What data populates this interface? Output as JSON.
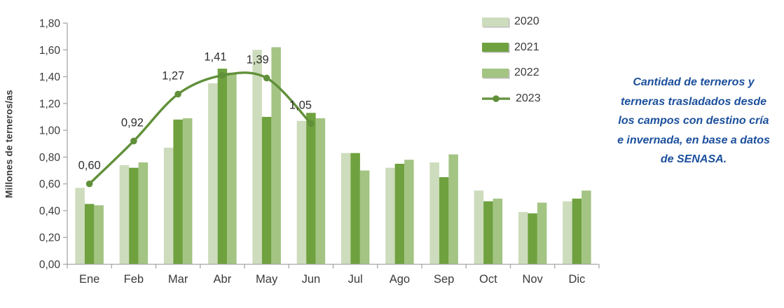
{
  "chart_data": {
    "type": "bar+line",
    "title": "",
    "xlabel": "",
    "ylabel": "Millones de terneros/as",
    "ylim": [
      0,
      1.8
    ],
    "ytick_step": 0.2,
    "ytick_labels": [
      "0,00",
      "0,20",
      "0,40",
      "0,60",
      "0,80",
      "1,00",
      "1,20",
      "1,40",
      "1,60",
      "1,80"
    ],
    "grid": false,
    "legend_position": "top-right",
    "categories": [
      "Ene",
      "Feb",
      "Mar",
      "Abr",
      "May",
      "Jun",
      "Jul",
      "Ago",
      "Sep",
      "Oct",
      "Nov",
      "Dic"
    ],
    "series": [
      {
        "name": "2020",
        "color": "#cddcbc",
        "values": [
          0.57,
          0.74,
          0.87,
          1.35,
          1.6,
          1.07,
          0.83,
          0.72,
          0.76,
          0.55,
          0.39,
          0.47
        ]
      },
      {
        "name": "2021",
        "color": "#6fa13f",
        "values": [
          0.45,
          0.72,
          1.08,
          1.46,
          1.1,
          1.13,
          0.83,
          0.75,
          0.65,
          0.47,
          0.38,
          0.49
        ]
      },
      {
        "name": "2022",
        "color": "#a3c483",
        "values": [
          0.44,
          0.76,
          1.09,
          1.43,
          1.62,
          1.09,
          0.7,
          0.78,
          0.82,
          0.49,
          0.46,
          0.55
        ]
      }
    ],
    "line_series": {
      "name": "2023",
      "color": "#61903a",
      "values": [
        0.6,
        0.92,
        1.27,
        1.41,
        1.39,
        1.05
      ],
      "point_labels": [
        "0,60",
        "0,92",
        "1,27",
        "1,41",
        "1,39",
        "1,05"
      ]
    },
    "axis_color": "#a8a8a8",
    "text_color": "#3a3a3a"
  },
  "note": {
    "lines": [
      "Cantidad de terneros y",
      "terneras trasladados desde",
      "los campos con destino cría",
      "e invernada, en base a datos",
      "de SENASA."
    ],
    "color": "#1b4f9c"
  }
}
